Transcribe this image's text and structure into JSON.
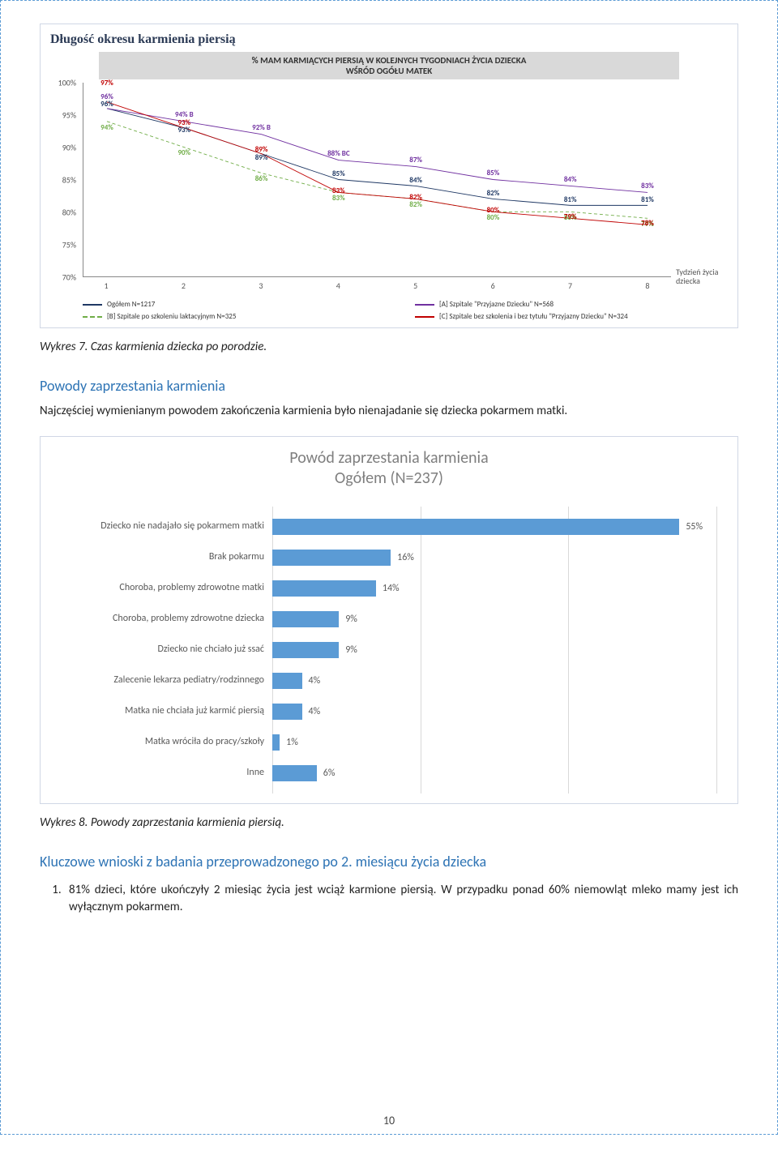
{
  "line_chart": {
    "card_title": "Długość okresu karmienia piersią",
    "banner_line1": "% MAM KARMIĄCYCH PIERSIĄ W KOLEJNYCH TYGODNIACH ŻYCIA DZIECKA",
    "banner_line2": "WŚRÓD OGÓŁU MATEK",
    "y_min": 70,
    "y_max": 100,
    "y_step": 5,
    "x_ticks": [
      "1",
      "2",
      "3",
      "4",
      "5",
      "6",
      "7",
      "8"
    ],
    "x_axis_title": "Tydzień życia dziecka",
    "series": [
      {
        "key": "ogolem",
        "label": "Ogółem N=1217",
        "color": "#1f3864",
        "dashed": false,
        "values": [
          96,
          93,
          89,
          85,
          84,
          82,
          81,
          81
        ],
        "label_positions": [
          {
            "i": 0,
            "dy": 0
          },
          {
            "i": 1,
            "dy": 8
          },
          {
            "i": 2,
            "dy": 10
          },
          {
            "i": 3,
            "dy": -2
          },
          {
            "i": 4,
            "dy": -2
          },
          {
            "i": 5,
            "dy": -2
          },
          {
            "i": 6,
            "dy": -2
          },
          {
            "i": 7,
            "dy": -2
          }
        ]
      },
      {
        "key": "a",
        "label": "[A] Szpitale \"Przyjazne Dziecku\" N=568",
        "color": "#7030a0",
        "dashed": false,
        "values": [
          96,
          94,
          92,
          88,
          87,
          85,
          84,
          83
        ],
        "label_suffix": {
          "1": " B",
          "2": " B",
          "3": " BC"
        },
        "label_positions": [
          {
            "i": 0,
            "dy": -9
          },
          {
            "i": 1,
            "dy": -3
          },
          {
            "i": 2,
            "dy": -3
          },
          {
            "i": 3,
            "dy": -3
          },
          {
            "i": 4,
            "dy": -3
          },
          {
            "i": 5,
            "dy": -3
          },
          {
            "i": 6,
            "dy": -3
          },
          {
            "i": 7,
            "dy": -3
          }
        ]
      },
      {
        "key": "b",
        "label": "[B] Szpitale po szkoleniu laktacyjnym N=325",
        "color": "#70ad47",
        "dashed": true,
        "values": [
          94,
          90,
          86,
          83,
          82,
          80,
          80,
          79
        ],
        "label_positions": [
          {
            "i": 0,
            "dy": 13
          },
          {
            "i": 1,
            "dy": 12
          },
          {
            "i": 2,
            "dy": 12
          },
          {
            "i": 3,
            "dy": 12
          },
          {
            "i": 4,
            "dy": 12
          },
          {
            "i": 5,
            "dy": 12
          },
          {
            "i": 6,
            "dy": 12
          },
          {
            "i": 7,
            "dy": 12
          }
        ]
      },
      {
        "key": "c",
        "label": "[C] Szpitale bez szkolenia i bez tytułu \"Przyjazny Dziecku\" N=324",
        "color": "#c00000",
        "dashed": false,
        "values": [
          97,
          93,
          89,
          83,
          82,
          80,
          79,
          78
        ],
        "label_positions": [
          {
            "i": 0,
            "dy": -18
          },
          {
            "i": 1,
            "dy": -1
          },
          {
            "i": 2,
            "dy": 0
          },
          {
            "i": 3,
            "dy": 3
          },
          {
            "i": 4,
            "dy": 3
          },
          {
            "i": 5,
            "dy": 3
          },
          {
            "i": 6,
            "dy": 3
          },
          {
            "i": 7,
            "dy": 3
          }
        ]
      }
    ],
    "caption": "Wykres 7. Czas karmienia dziecka po porodzie."
  },
  "section1": {
    "heading": "Powody zaprzestania karmienia",
    "para": "Najczęściej wymienianym powodem zakończenia karmienia było nienajadanie się dziecka pokarmem matki."
  },
  "bar_chart": {
    "title_line1": "Powód zaprzestania karmienia",
    "title_line2": "Ogółem (N=237)",
    "max_pct": 60,
    "gridlines": [
      0,
      20,
      40,
      60
    ],
    "bar_color": "#5b9bd5",
    "rows": [
      {
        "label": "Dziecko nie nadajało się pokarmem matki",
        "value": 55,
        "text": "55%"
      },
      {
        "label": "Brak pokarmu",
        "value": 16,
        "text": "16%"
      },
      {
        "label": "Choroba, problemy zdrowotne matki",
        "value": 14,
        "text": "14%"
      },
      {
        "label": "Choroba, problemy zdrowotne dziecka",
        "value": 9,
        "text": "9%"
      },
      {
        "label": "Dziecko nie chciało już ssać",
        "value": 9,
        "text": "9%"
      },
      {
        "label": "Zalecenie lekarza pediatry/rodzinnego",
        "value": 4,
        "text": "4%"
      },
      {
        "label": "Matka nie chciała już karmić piersią",
        "value": 4,
        "text": "4%"
      },
      {
        "label": "Matka wróciła do pracy/szkoły",
        "value": 1,
        "text": "1%"
      },
      {
        "label": "Inne",
        "value": 6,
        "text": "6%"
      }
    ],
    "caption": "Wykres 8. Powody zaprzestania karmienia piersią."
  },
  "section2": {
    "heading": "Kluczowe wnioski z badania przeprowadzonego po 2. miesiącu życia dziecka",
    "item1": "81% dzieci, które ukończyły 2 miesiąc życia jest wciąż karmione piersią. W przypadku ponad 60% niemowląt mleko mamy jest ich wyłącznym pokarmem."
  },
  "page_number": "10"
}
